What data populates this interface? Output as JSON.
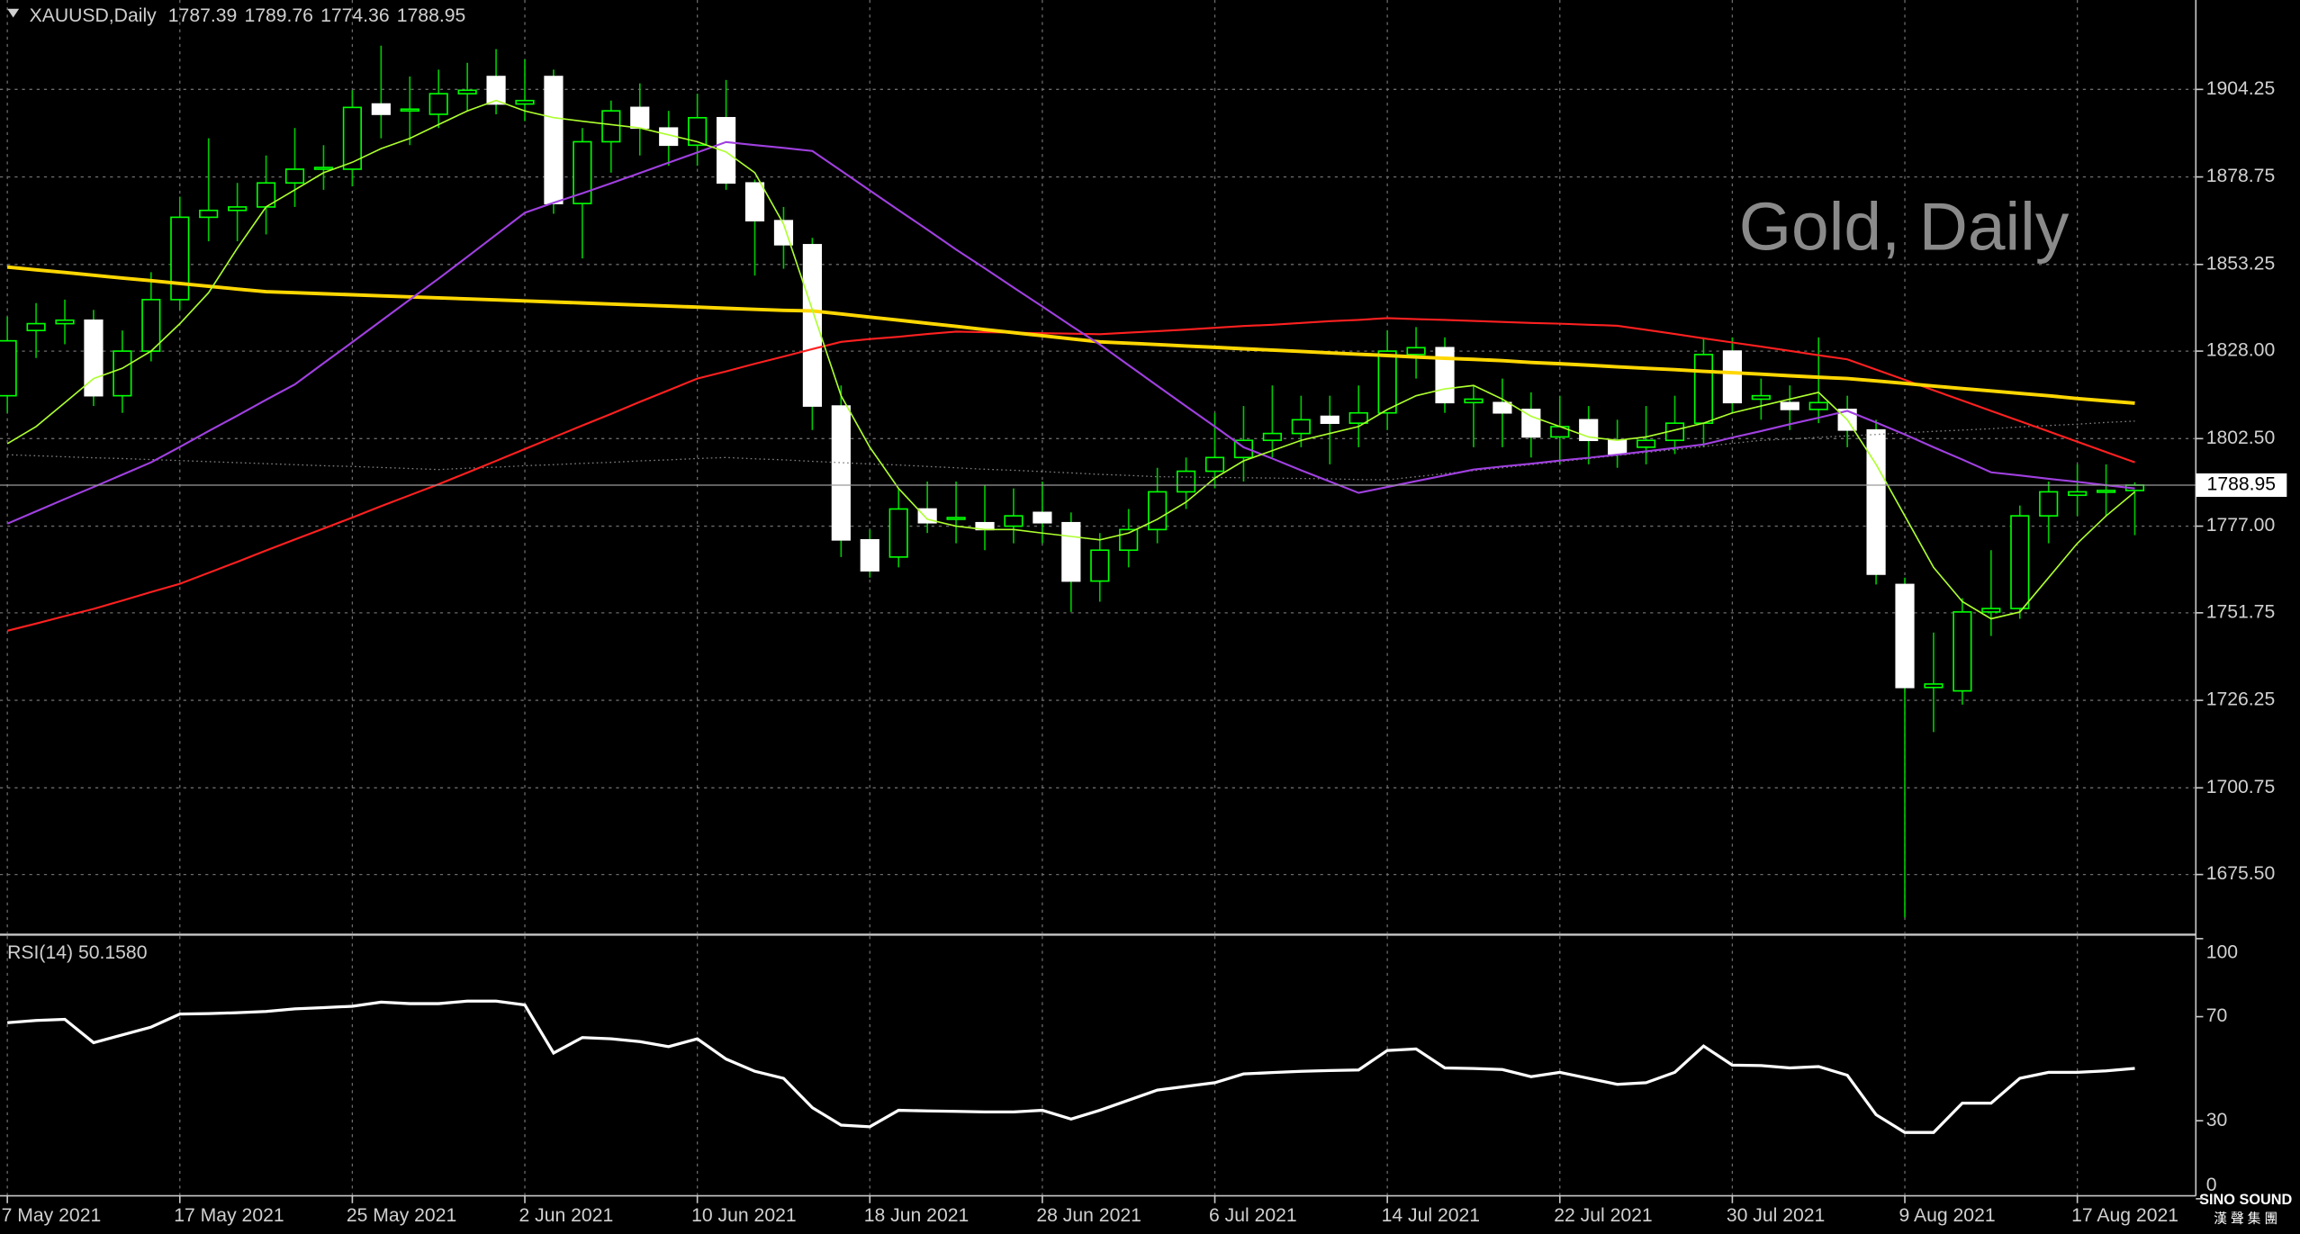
{
  "chart_data": [
    {
      "type": "candlestick",
      "title": "XAUUSD,Daily",
      "watermark": "Gold, Daily",
      "categories": [
        "7 May 2021",
        null,
        null,
        null,
        null,
        null,
        "17 May 2021",
        null,
        null,
        null,
        null,
        null,
        "25 May 2021",
        null,
        null,
        null,
        null,
        null,
        "2 Jun 2021",
        null,
        null,
        null,
        null,
        null,
        "10 Jun 2021",
        null,
        null,
        null,
        null,
        null,
        "18 Jun 2021",
        null,
        null,
        null,
        null,
        null,
        "28 Jun 2021",
        null,
        null,
        null,
        null,
        null,
        "6 Jul 2021",
        null,
        null,
        null,
        null,
        null,
        "14 Jul 2021",
        null,
        null,
        null,
        null,
        null,
        "22 Jul 2021",
        null,
        null,
        null,
        null,
        null,
        "30 Jul 2021",
        null,
        null,
        null,
        null,
        null,
        "9 Aug 2021",
        null,
        null,
        null,
        null,
        null,
        "17 Aug 2021",
        null,
        null
      ],
      "open": [
        1815,
        1834,
        1836,
        1837,
        1815,
        1828,
        1843,
        1867,
        1869,
        1870,
        1877,
        1881,
        1881,
        1900,
        1898,
        1897,
        1903,
        1908,
        1900,
        1908,
        1871,
        1889,
        1899,
        1893,
        1888,
        1896,
        1877,
        1866,
        1859,
        1812,
        1773,
        1768,
        1782,
        1779,
        1778,
        1777,
        1781,
        1778,
        1761,
        1770,
        1776,
        1787,
        1793,
        1797,
        1802,
        1804,
        1809,
        1807,
        1810,
        1827,
        1829,
        1813,
        1813,
        1811,
        1803,
        1808,
        1802,
        1800,
        1802,
        1807,
        1828,
        1814,
        1813,
        1811,
        1811,
        1805,
        1760,
        1730,
        1729,
        1752,
        1753,
        1780,
        1786,
        1787,
        1787.39
      ],
      "high": [
        1838,
        1842,
        1843,
        1840,
        1834,
        1851,
        1873,
        1890,
        1877,
        1885,
        1893,
        1888,
        1904,
        1917,
        1908,
        1910,
        1912,
        1916,
        1913,
        1910,
        1893,
        1901,
        1906,
        1898,
        1903,
        1907,
        1878,
        1870,
        1861,
        1818,
        1776,
        1788,
        1790,
        1790,
        1789,
        1788,
        1790,
        1781,
        1775,
        1782,
        1794,
        1797,
        1810,
        1812,
        1818,
        1815,
        1815,
        1818,
        1834,
        1835,
        1832,
        1818,
        1820,
        1816,
        1815,
        1812,
        1808,
        1812,
        1815,
        1832,
        1832,
        1820,
        1818,
        1832,
        1815,
        1808,
        1762,
        1746,
        1756,
        1770,
        1783,
        1790,
        1795,
        1795,
        1789.76
      ],
      "low": [
        1810,
        1826,
        1830,
        1812,
        1810,
        1825,
        1840,
        1860,
        1860,
        1862,
        1870,
        1875,
        1876,
        1890,
        1888,
        1893,
        1898,
        1897,
        1895,
        1868,
        1855,
        1880,
        1885,
        1882,
        1882,
        1875,
        1850,
        1852,
        1805,
        1768,
        1762,
        1765,
        1775,
        1772,
        1770,
        1772,
        1772,
        1752,
        1755,
        1765,
        1772,
        1782,
        1788,
        1790,
        1797,
        1800,
        1795,
        1800,
        1805,
        1820,
        1810,
        1800,
        1800,
        1797,
        1795,
        1795,
        1794,
        1795,
        1798,
        1800,
        1810,
        1808,
        1805,
        1807,
        1800,
        1760,
        1663,
        1717,
        1725,
        1745,
        1750,
        1772,
        1780,
        1780,
        1774.36
      ],
      "close": [
        1831,
        1836,
        1837,
        1815,
        1828,
        1843,
        1867,
        1869,
        1870,
        1877,
        1881,
        1881.5,
        1899,
        1897,
        1898.5,
        1903,
        1904,
        1900,
        1901,
        1871,
        1889,
        1898,
        1893,
        1888,
        1896,
        1877,
        1866,
        1859,
        1812,
        1773,
        1764,
        1782,
        1778,
        1779.5,
        1776,
        1780,
        1778,
        1761,
        1770,
        1776,
        1787,
        1793,
        1797,
        1802,
        1804,
        1808,
        1807,
        1810,
        1828,
        1829,
        1813,
        1814,
        1810,
        1803,
        1806,
        1802,
        1798,
        1802,
        1807,
        1827,
        1813,
        1815,
        1811,
        1813,
        1805,
        1763,
        1730,
        1731,
        1752,
        1753,
        1780,
        1787,
        1787,
        1787.4,
        1788.95
      ],
      "up_color": "#00ff00",
      "down_color": "#ffffff",
      "wick_color": "#00c800",
      "series": [
        {
          "color": "#808080",
          "dash": true,
          "width": 0.8,
          "values": [
            1797.8,
            1797.5,
            1797.2,
            1796.9,
            1796.7,
            1796.4,
            1796.1,
            1795.8,
            1795.5,
            1795.2,
            1794.9,
            1794.6,
            1794.4,
            1794.1,
            1793.8,
            1793.5,
            1793.9,
            1794.2,
            1794.6,
            1794.9,
            1795.3,
            1795.6,
            1796.0,
            1796.3,
            1796.7,
            1797.0,
            1796.6,
            1796.3,
            1795.9,
            1795.5,
            1795.1,
            1794.8,
            1794.4,
            1794.0,
            1793.6,
            1793.3,
            1792.9,
            1792.5,
            1792.1,
            1791.8,
            1791.4,
            1791.3,
            1791.2,
            1791.1,
            1791.0,
            1790.9,
            1790.8,
            1790.6,
            1790.5,
            1791.4,
            1792.3,
            1793.2,
            1794.0,
            1794.9,
            1795.8,
            1796.7,
            1797.6,
            1798.5,
            1799.3,
            1800.2,
            1801.1,
            1802.0,
            1802.4,
            1802.9,
            1803.3,
            1803.7,
            1804.2,
            1804.6,
            1805.0,
            1805.4,
            1805.9,
            1806.3,
            1806.7,
            1807.2,
            1807.6
          ]
        },
        {
          "color": "#ff2020",
          "dash": false,
          "width": 1.3,
          "values": [
            1746.5,
            1748.6,
            1750.8,
            1752.9,
            1755.3,
            1757.8,
            1760.2,
            1763.4,
            1766.6,
            1769.9,
            1773.1,
            1776.3,
            1779.5,
            1782.8,
            1786.0,
            1789.2,
            1792.6,
            1796.0,
            1799.5,
            1802.9,
            1806.3,
            1809.7,
            1813.2,
            1816.6,
            1820.0,
            1822.1,
            1824.3,
            1826.4,
            1828.6,
            1830.7,
            1831.5,
            1832.2,
            1833.0,
            1833.7,
            1833.5,
            1833.4,
            1833.2,
            1833.1,
            1832.9,
            1833.4,
            1833.8,
            1834.3,
            1834.8,
            1835.3,
            1835.7,
            1836.2,
            1836.7,
            1837.1,
            1837.6,
            1837.3,
            1837.1,
            1836.8,
            1836.5,
            1836.2,
            1836.0,
            1835.7,
            1835.4,
            1834.2,
            1833.0,
            1831.7,
            1830.5,
            1829.3,
            1828.1,
            1826.8,
            1825.6,
            1822.6,
            1819.6,
            1816.6,
            1813.6,
            1810.6,
            1807.6,
            1804.6,
            1801.6,
            1798.6,
            1795.6
          ]
        },
        {
          "color": "#ffd700",
          "dash": false,
          "width": 2.4,
          "values": [
            1852.5,
            1851.7,
            1850.9,
            1850.1,
            1849.3,
            1848.5,
            1847.7,
            1846.9,
            1846.1,
            1845.3,
            1845.0,
            1844.7,
            1844.4,
            1844.1,
            1843.8,
            1843.5,
            1843.2,
            1842.9,
            1842.6,
            1842.3,
            1842.0,
            1841.7,
            1841.4,
            1841.1,
            1840.8,
            1840.5,
            1840.2,
            1839.9,
            1839.7,
            1838.8,
            1837.9,
            1837.0,
            1836.1,
            1835.2,
            1834.3,
            1833.4,
            1832.5,
            1831.6,
            1830.7,
            1830.3,
            1829.9,
            1829.5,
            1829.1,
            1828.7,
            1828.3,
            1827.9,
            1827.5,
            1827.1,
            1826.7,
            1826.3,
            1825.9,
            1825.6,
            1825.2,
            1824.7,
            1824.3,
            1823.9,
            1823.4,
            1823.0,
            1822.6,
            1822.1,
            1821.7,
            1821.3,
            1820.8,
            1820.4,
            1820.0,
            1819.3,
            1818.6,
            1817.8,
            1817.1,
            1816.4,
            1815.7,
            1815.0,
            1814.2,
            1813.5,
            1812.8
          ]
        },
        {
          "color": "#a040e0",
          "dash": false,
          "width": 1.3,
          "values": [
            1777.7,
            1781.3,
            1784.9,
            1788.4,
            1792.0,
            1795.6,
            1800.1,
            1804.7,
            1809.2,
            1813.8,
            1818.3,
            1824.5,
            1830.6,
            1836.8,
            1843.0,
            1849.1,
            1855.5,
            1861.9,
            1868.3,
            1871.2,
            1874.0,
            1876.9,
            1879.9,
            1882.9,
            1885.9,
            1888.9,
            1888.0,
            1887.2,
            1886.3,
            1880.6,
            1874.8,
            1869.1,
            1863.4,
            1857.6,
            1852.1,
            1846.5,
            1841.0,
            1835.4,
            1829.9,
            1823.9,
            1817.9,
            1811.9,
            1806.0,
            1800.0,
            1796.7,
            1793.3,
            1790.0,
            1786.7,
            1788.4,
            1790.1,
            1791.8,
            1793.5,
            1794.4,
            1795.2,
            1796.1,
            1796.9,
            1797.8,
            1798.8,
            1799.8,
            1800.8,
            1802.8,
            1804.7,
            1806.7,
            1808.6,
            1810.6,
            1807.2,
            1803.7,
            1800.0,
            1796.4,
            1792.7,
            1791.8,
            1790.8,
            1789.9,
            1788.9,
            1788.0
          ]
        },
        {
          "color": "#adff2f",
          "dash": false,
          "width": 1.0,
          "values": [
            1801,
            1806,
            1813,
            1820,
            1823,
            1828,
            1836,
            1845,
            1858,
            1870,
            1875,
            1880,
            1883,
            1887,
            1890,
            1894,
            1898,
            1901,
            1898,
            1896,
            1895,
            1894,
            1893,
            1891,
            1889,
            1886,
            1880,
            1865,
            1840,
            1815,
            1800,
            1788,
            1779,
            1777,
            1776,
            1776,
            1775,
            1774,
            1773,
            1775,
            1779,
            1784,
            1791,
            1796,
            1799,
            1802,
            1804,
            1806,
            1811,
            1815,
            1817,
            1818,
            1814,
            1809,
            1806,
            1803,
            1802,
            1803,
            1805,
            1807,
            1810,
            1812,
            1814,
            1816,
            1808,
            1795,
            1780,
            1765,
            1755,
            1750,
            1752,
            1762,
            1772,
            1780,
            1787
          ]
        }
      ],
      "ylim": [
        1658.4,
        1930.3
      ],
      "yticks": [
        {
          "value": 1675.5,
          "label": "1675.50"
        },
        1700.75,
        1726.25,
        1751.75,
        {
          "value": 1777,
          "label": "1777.00"
        },
        {
          "value": 1802.5,
          "label": "1802.50"
        },
        {
          "value": 1828,
          "label": "1828.00"
        },
        1853.25,
        1878.75,
        1904.25
      ],
      "grid": true
    },
    {
      "type": "line",
      "title": "RSI(14) 50.1580",
      "color": "#ffffff",
      "values": [
        67.7,
        68.5,
        69.0,
        60.0,
        63.0,
        66.0,
        71.0,
        71.2,
        71.5,
        72.0,
        73.0,
        73.5,
        74.0,
        75.6,
        75.0,
        75.0,
        76.0,
        76.0,
        74.5,
        56.0,
        62.0,
        61.5,
        60.4,
        58.5,
        61.5,
        53.7,
        49.0,
        46.3,
        35.0,
        28.3,
        27.7,
        34.0,
        33.8,
        33.6,
        33.4,
        33.4,
        34.0,
        30.6,
        34.0,
        37.9,
        41.8,
        43.2,
        44.6,
        48.0,
        48.5,
        49.0,
        49.3,
        49.5,
        57.0,
        57.6,
        50.3,
        50.1,
        49.7,
        46.9,
        48.6,
        46.3,
        44.0,
        44.6,
        48.6,
        58.7,
        51.4,
        51.2,
        50.3,
        50.8,
        47.5,
        32.3,
        25.5,
        25.5,
        36.8,
        36.8,
        46.3,
        48.6,
        48.6,
        49.2,
        50.158
      ],
      "ylim": [
        0,
        100
      ],
      "yticks": [
        0,
        30,
        70,
        100
      ]
    }
  ],
  "logo": {
    "name": "SINO SOUND",
    "subtitle": "漢 聲 集 團"
  }
}
